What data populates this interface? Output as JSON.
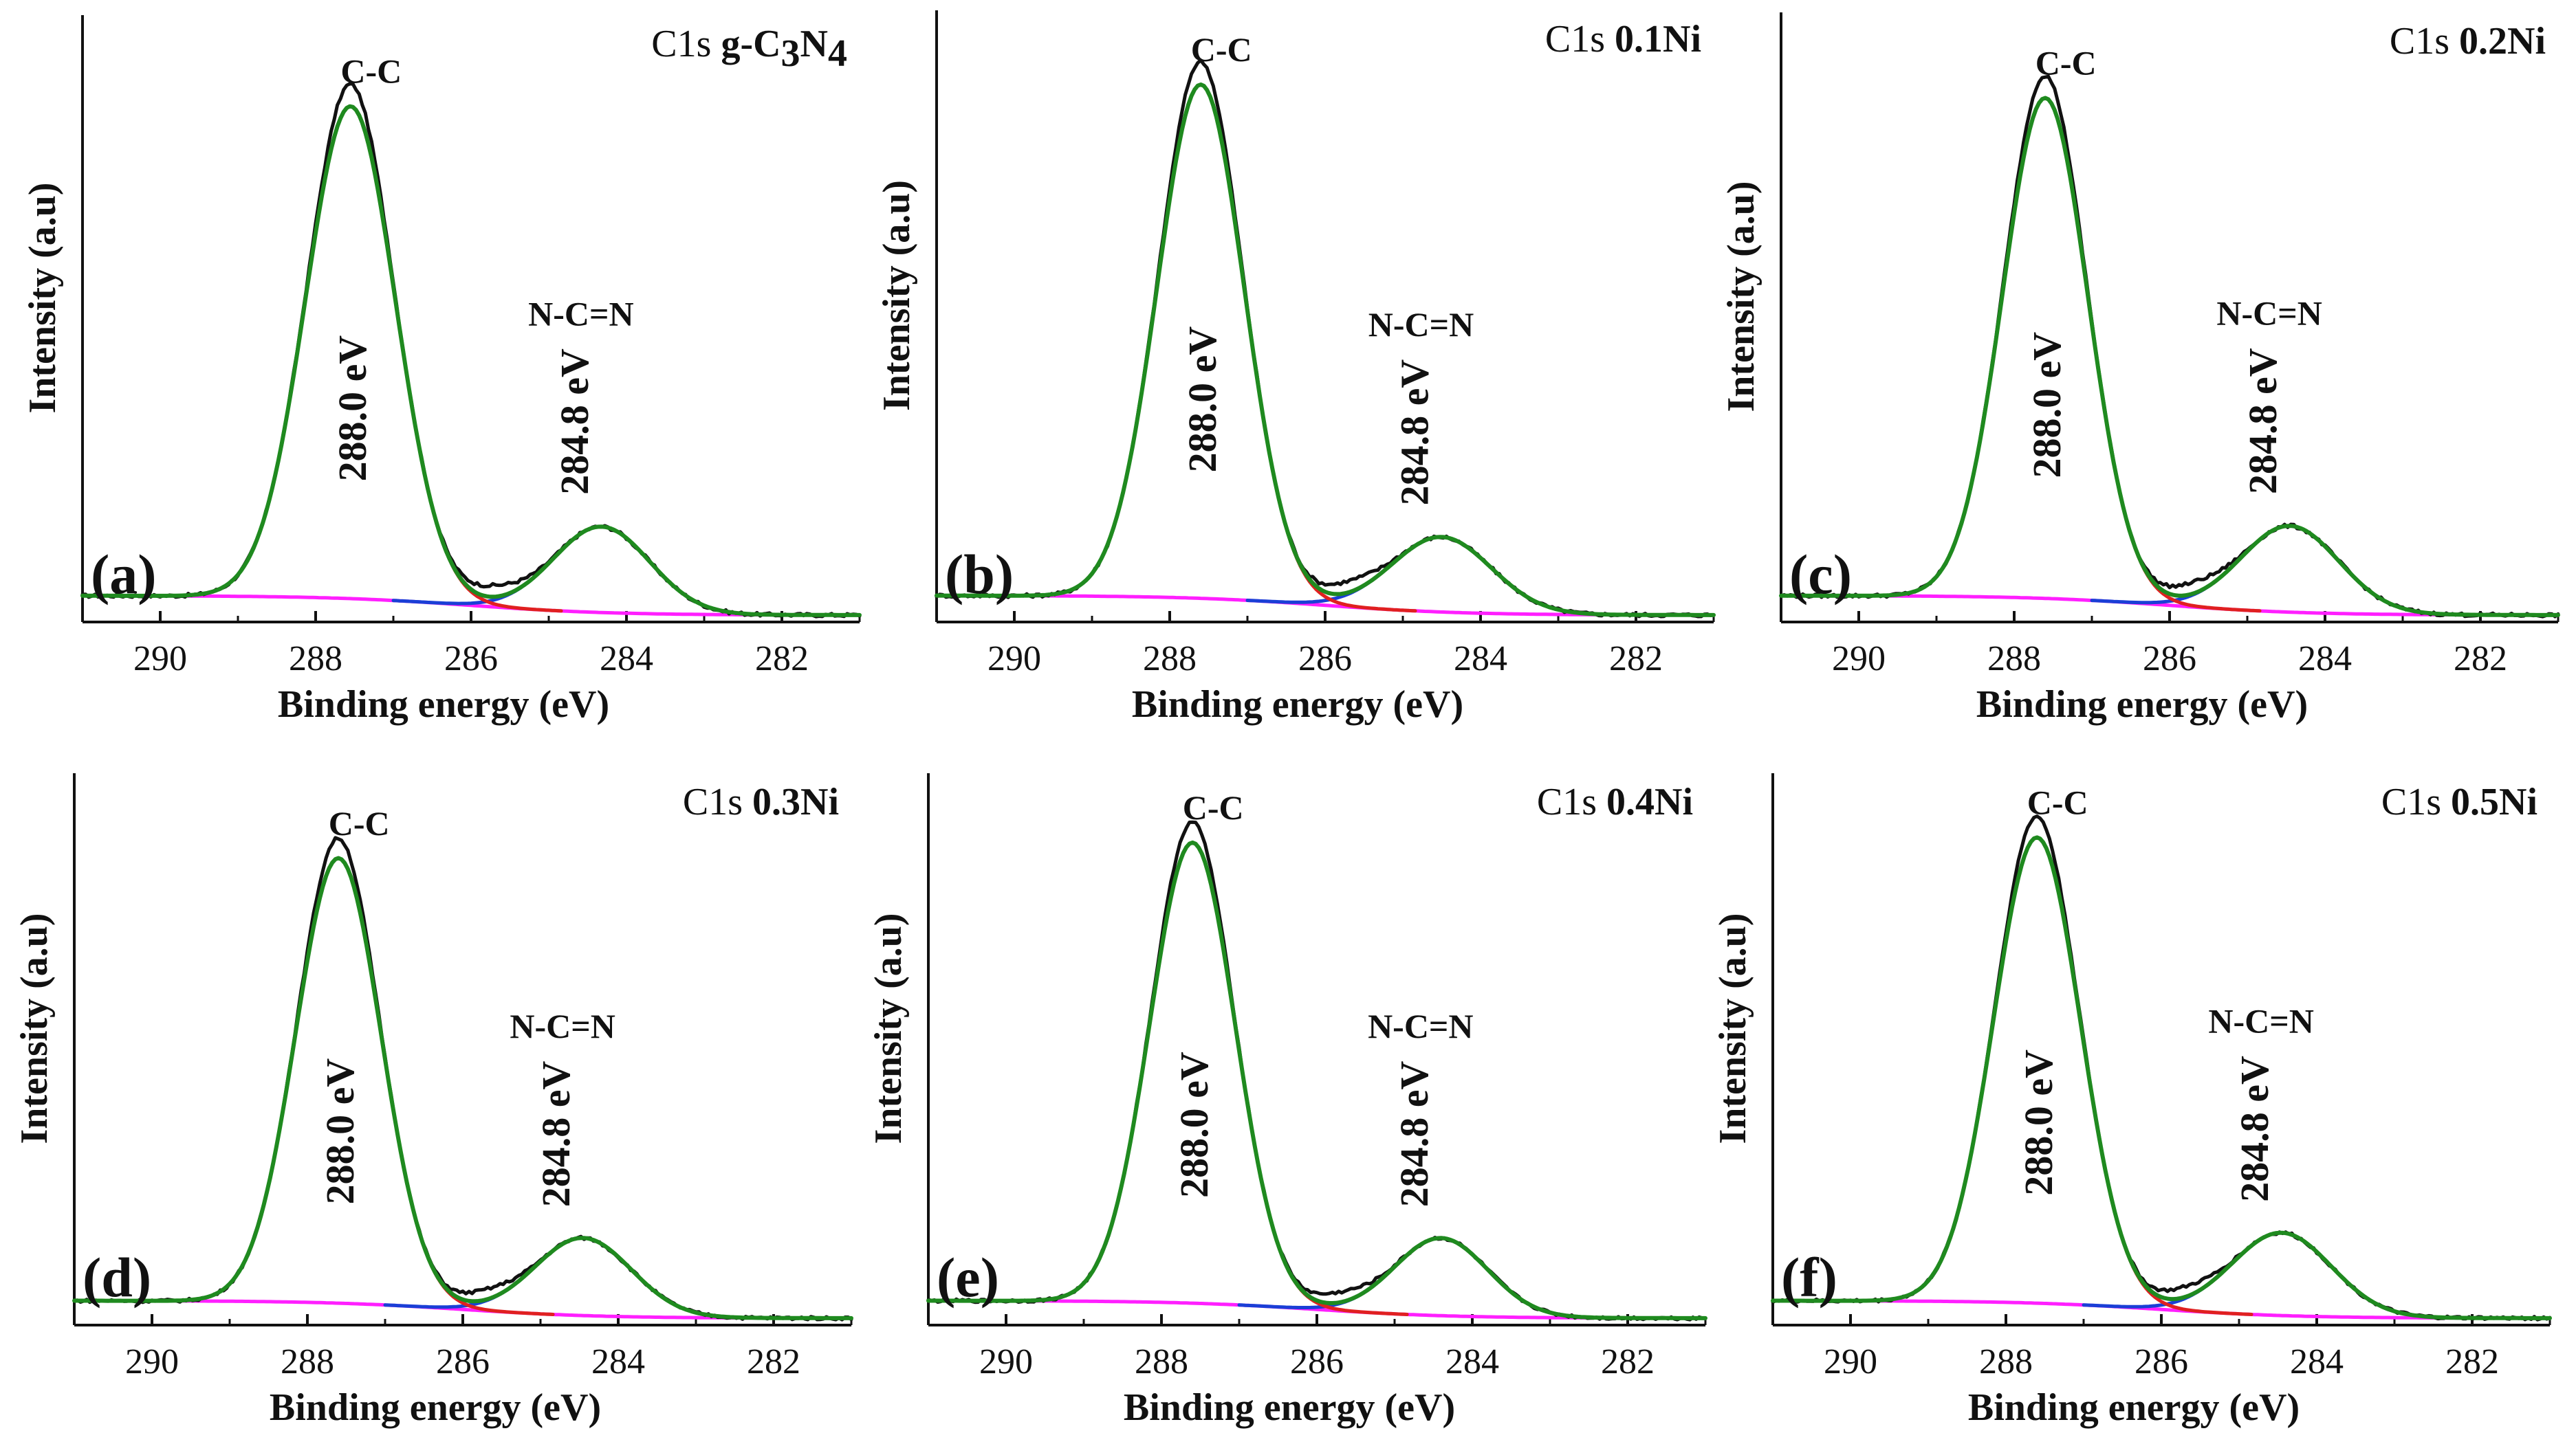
{
  "figure": {
    "description_free": true,
    "colors": {
      "experimental": "#111111",
      "fitted_envelope": "#1f8a1f",
      "component_1": "#e02020",
      "component_2": "#1a3fd6",
      "background": "#ff1fff"
    }
  },
  "chart_data": [
    {
      "panel": "(a)",
      "type": "line",
      "title_element": "C1s",
      "title_sample": "g-C",
      "title_sample_sub1": "3",
      "title_sample_mid": "N",
      "title_sample_sub2": "4",
      "xlabel": "Binding energy (eV)",
      "ylabel": "Intensity (a.u)",
      "xlim": [
        291,
        281
      ],
      "ylim": [
        0,
        1.0
      ],
      "xticks": [
        290,
        288,
        286,
        284,
        282
      ],
      "peaks": [
        {
          "label": "C-C",
          "position_label": "288.0 eV",
          "center": 287.55,
          "height": 0.86,
          "sigma": 0.58
        },
        {
          "label": "N-C=N",
          "position_label": "284.8 eV",
          "center": 284.32,
          "height": 0.15,
          "sigma": 0.62
        }
      ],
      "background": {
        "start": 0.034,
        "end": 0.0
      },
      "series": [
        {
          "name": "experimental",
          "color": "#111111"
        },
        {
          "name": "fitted envelope",
          "color": "#1f8a1f"
        },
        {
          "name": "C-C component",
          "color": "#e02020"
        },
        {
          "name": "N-C=N component",
          "color": "#1a3fd6"
        },
        {
          "name": "background",
          "color": "#ff1fff"
        }
      ]
    },
    {
      "panel": "(b)",
      "type": "line",
      "title_element": "C1s",
      "title_sample": "0.1Ni",
      "xlabel": "Binding energy (eV)",
      "ylabel": "Intensity (a.u)",
      "xlim": [
        291,
        281
      ],
      "ylim": [
        0,
        1.0
      ],
      "xticks": [
        290,
        288,
        286,
        284,
        282
      ],
      "peaks": [
        {
          "label": "C-C",
          "position_label": "288.0 eV",
          "center": 287.6,
          "height": 0.89,
          "sigma": 0.56
        },
        {
          "label": "N-C=N",
          "position_label": "284.8 eV",
          "center": 284.5,
          "height": 0.13,
          "sigma": 0.64
        }
      ],
      "background": {
        "start": 0.034,
        "end": 0.0
      },
      "series": [
        {
          "name": "experimental",
          "color": "#111111"
        },
        {
          "name": "fitted envelope",
          "color": "#1f8a1f"
        },
        {
          "name": "C-C component",
          "color": "#e02020"
        },
        {
          "name": "N-C=N component",
          "color": "#1a3fd6"
        },
        {
          "name": "background",
          "color": "#ff1fff"
        }
      ]
    },
    {
      "panel": "(c)",
      "type": "line",
      "title_element": "C1s",
      "title_sample": "0.2Ni",
      "xlabel": "Binding energy (eV)",
      "ylabel": "Intensity (a.u)",
      "xlim": [
        291,
        281
      ],
      "ylim": [
        0,
        1.0
      ],
      "xticks": [
        290,
        288,
        286,
        284,
        282
      ],
      "peaks": [
        {
          "label": "C-C",
          "position_label": "288.0 eV",
          "center": 287.6,
          "height": 0.87,
          "sigma": 0.55
        },
        {
          "label": "N-C=N",
          "position_label": "284.8 eV",
          "center": 284.45,
          "height": 0.15,
          "sigma": 0.63
        }
      ],
      "background": {
        "start": 0.034,
        "end": 0.0
      },
      "series": [
        {
          "name": "experimental",
          "color": "#111111"
        },
        {
          "name": "fitted envelope",
          "color": "#1f8a1f"
        },
        {
          "name": "C-C component",
          "color": "#e02020"
        },
        {
          "name": "N-C=N component",
          "color": "#1a3fd6"
        },
        {
          "name": "background",
          "color": "#ff1fff"
        }
      ]
    },
    {
      "panel": "(d)",
      "type": "line",
      "title_element": "C1s",
      "title_sample": "0.3Ni",
      "xlabel": "Binding energy (eV)",
      "ylabel": "Intensity (a.u)",
      "xlim": [
        291,
        281
      ],
      "ylim": [
        0,
        1.0
      ],
      "xticks": [
        290,
        288,
        286,
        284,
        282
      ],
      "peaks": [
        {
          "label": "C-C",
          "position_label": "288.0 eV",
          "center": 287.6,
          "height": 0.86,
          "sigma": 0.55
        },
        {
          "label": "N-C=N",
          "position_label": "284.8 eV",
          "center": 284.45,
          "height": 0.15,
          "sigma": 0.62
        }
      ],
      "background": {
        "start": 0.034,
        "end": 0.0
      },
      "series": [
        {
          "name": "experimental",
          "color": "#111111"
        },
        {
          "name": "fitted envelope",
          "color": "#1f8a1f"
        },
        {
          "name": "C-C component",
          "color": "#e02020"
        },
        {
          "name": "N-C=N component",
          "color": "#1a3fd6"
        },
        {
          "name": "background",
          "color": "#ff1fff"
        }
      ]
    },
    {
      "panel": "(e)",
      "type": "line",
      "title_element": "C1s",
      "title_sample": "0.4Ni",
      "xlabel": "Binding energy (eV)",
      "ylabel": "Intensity (a.u)",
      "xlim": [
        291,
        281
      ],
      "ylim": [
        0,
        1.0
      ],
      "xticks": [
        290,
        288,
        286,
        284,
        282
      ],
      "peaks": [
        {
          "label": "C-C",
          "position_label": "288.0 eV",
          "center": 287.6,
          "height": 0.89,
          "sigma": 0.55
        },
        {
          "label": "N-C=N",
          "position_label": "284.8 eV",
          "center": 284.4,
          "height": 0.15,
          "sigma": 0.6
        }
      ],
      "background": {
        "start": 0.034,
        "end": 0.0
      },
      "series": [
        {
          "name": "experimental",
          "color": "#111111"
        },
        {
          "name": "fitted envelope",
          "color": "#1f8a1f"
        },
        {
          "name": "C-C component",
          "color": "#e02020"
        },
        {
          "name": "N-C=N component",
          "color": "#1a3fd6"
        },
        {
          "name": "background",
          "color": "#ff1fff"
        }
      ]
    },
    {
      "panel": "(f)",
      "type": "line",
      "title_element": "C1s",
      "title_sample": "0.5Ni",
      "xlabel": "Binding energy (eV)",
      "ylabel": "Intensity (a.u)",
      "xlim": [
        291,
        281
      ],
      "ylim": [
        0,
        1.0
      ],
      "xticks": [
        290,
        288,
        286,
        284,
        282
      ],
      "peaks": [
        {
          "label": "C-C",
          "position_label": "288.0 eV",
          "center": 287.6,
          "height": 0.9,
          "sigma": 0.56
        },
        {
          "label": "N-C=N",
          "position_label": "284.8 eV",
          "center": 284.45,
          "height": 0.16,
          "sigma": 0.64
        }
      ],
      "background": {
        "start": 0.034,
        "end": 0.0
      },
      "series": [
        {
          "name": "experimental",
          "color": "#111111"
        },
        {
          "name": "fitted envelope",
          "color": "#1f8a1f"
        },
        {
          "name": "C-C component",
          "color": "#e02020"
        },
        {
          "name": "N-C=N component",
          "color": "#1a3fd6"
        },
        {
          "name": "background",
          "color": "#ff1fff"
        }
      ]
    }
  ]
}
